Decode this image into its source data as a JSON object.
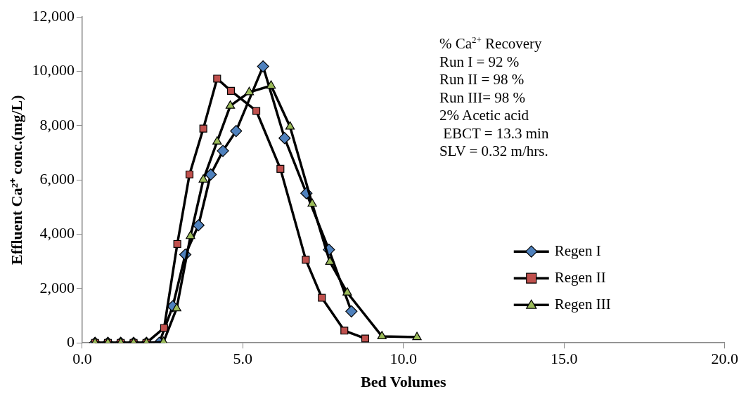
{
  "chart_data": {
    "type": "line",
    "xlabel": "Bed Volumes",
    "ylabel": "Effluent Ca²⁺ conc.(mg/L)",
    "xlim": [
      0,
      20
    ],
    "xticks": [
      {
        "value": 0,
        "label": "0.0"
      },
      {
        "value": 5,
        "label": "5.0"
      },
      {
        "value": 10,
        "label": "10.0"
      },
      {
        "value": 15,
        "label": "15.0"
      },
      {
        "value": 20,
        "label": "20.0"
      }
    ],
    "ylim": [
      0,
      12000
    ],
    "yticks": [
      {
        "value": 0,
        "label": "0"
      },
      {
        "value": 2000,
        "label": "2,000"
      },
      {
        "value": 4000,
        "label": "4,000"
      },
      {
        "value": 6000,
        "label": "6,000"
      },
      {
        "value": 8000,
        "label": "8,000"
      },
      {
        "value": 10000,
        "label": "10,000"
      },
      {
        "value": 12000,
        "label": "12,000"
      }
    ],
    "grid": false,
    "legend": "bottom right",
    "line_style": "solid",
    "series": [
      {
        "name": "Regen I",
        "color": "#4f81bd",
        "marker": "diamond",
        "x": [
          0.4,
          0.8,
          1.2,
          1.6,
          2.0,
          2.4,
          2.82,
          3.21,
          3.62,
          4.0,
          4.38,
          4.79,
          5.63,
          6.3,
          6.98,
          7.68,
          8.38
        ],
        "values": [
          0,
          0,
          0,
          0,
          0,
          0,
          1350,
          3250,
          4330,
          6200,
          7070,
          7800,
          10180,
          7540,
          5510,
          3430,
          1160
        ]
      },
      {
        "name": "Regen II",
        "color": "#c0504d",
        "marker": "square",
        "x": [
          0.4,
          0.8,
          1.2,
          1.6,
          2.0,
          2.55,
          2.96,
          3.34,
          3.77,
          4.2,
          4.63,
          5.42,
          6.17,
          6.96,
          7.46,
          8.16,
          8.81
        ],
        "values": [
          0,
          0,
          0,
          0,
          0,
          550,
          3640,
          6200,
          7890,
          9730,
          9280,
          8540,
          6410,
          3060,
          1660,
          450,
          160
        ]
      },
      {
        "name": "Regen III",
        "color": "#9bbb59",
        "marker": "triangle",
        "x": [
          0.4,
          0.8,
          1.2,
          1.6,
          2.0,
          2.53,
          2.94,
          3.37,
          3.77,
          4.2,
          4.61,
          5.2,
          5.88,
          6.47,
          7.16,
          7.71,
          8.25,
          9.33,
          10.42
        ],
        "values": [
          0,
          0,
          0,
          0,
          0,
          30,
          1270,
          3930,
          6010,
          7410,
          8730,
          9230,
          9470,
          7960,
          5120,
          2980,
          1850,
          240,
          210
        ]
      }
    ],
    "annotations": [
      "% Ca$^{2+}$ Recovery",
      "Run I = 92 %",
      "Run II = 98 %",
      "Run III= 98 %",
      "2% Acetic acid",
      " EBCT = 13.3 min",
      "SLV = 0.32 m/hrs."
    ]
  }
}
